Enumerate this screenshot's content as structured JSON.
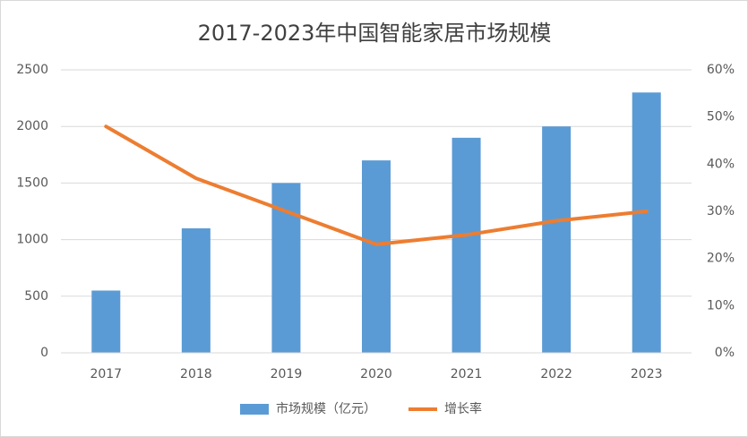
{
  "chart_data": {
    "type": "bar",
    "title": "2017-2023年中国智能家居市场规模",
    "categories": [
      "2017",
      "2018",
      "2019",
      "2020",
      "2021",
      "2022",
      "2023"
    ],
    "series": [
      {
        "name": "市场规模（亿元）",
        "type": "bar",
        "color": "#5b9bd5",
        "values": [
          550,
          1100,
          1500,
          1700,
          1900,
          2000,
          2300
        ]
      },
      {
        "name": "增长率",
        "type": "line",
        "axis": "y2",
        "color": "#ed7d31",
        "values": [
          48,
          37,
          30,
          23,
          25,
          28,
          30
        ]
      }
    ],
    "ylim": [
      0,
      2500
    ],
    "yticks": [
      0,
      500,
      1000,
      1500,
      2000,
      2500
    ],
    "y2lim": [
      0,
      60
    ],
    "y2ticks": [
      {
        "value": 0,
        "label": "0%"
      },
      {
        "value": 10,
        "label": "10%"
      },
      {
        "value": 20,
        "label": "20%"
      },
      {
        "value": 30,
        "label": "30%"
      },
      {
        "value": 40,
        "label": "40%"
      },
      {
        "value": 50,
        "label": "50%"
      },
      {
        "value": 60,
        "label": "60%"
      }
    ],
    "grid": true,
    "legend": "bottom"
  }
}
